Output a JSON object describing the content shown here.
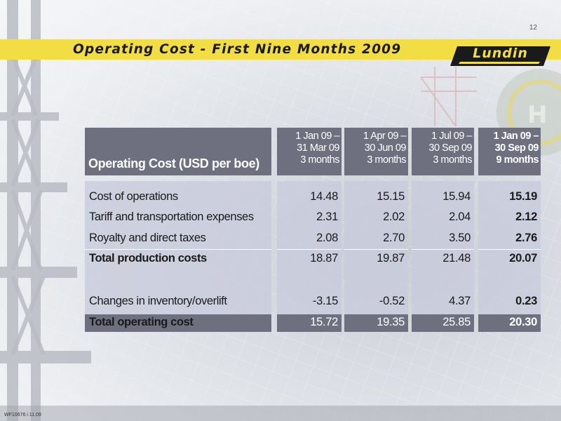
{
  "page_number": "12",
  "title": "Operating Cost - First Nine Months 2009",
  "logo": "Lundin",
  "footer_code": "WF10676 i 11.09",
  "table": {
    "header_label": "Operating Cost (USD per boe)",
    "periods": [
      {
        "line1": "1 Jan 09 –",
        "line2": "31 Mar 09",
        "line3": "3 months"
      },
      {
        "line1": "1 Apr 09 –",
        "line2": "30 Jun 09",
        "line3": "3 months"
      },
      {
        "line1": "1 Jul 09 –",
        "line2": "30 Sep 09",
        "line3": "3 months"
      },
      {
        "line1": "1 Jan 09 –",
        "line2": "30 Sep 09",
        "line3": "9 months"
      }
    ],
    "rows": [
      {
        "label": "Cost of operations",
        "values": [
          "14.48",
          "15.15",
          "15.94",
          "15.19"
        ]
      },
      {
        "label": "Tariff and transportation expenses",
        "values": [
          "2.31",
          "2.02",
          "2.04",
          "2.12"
        ]
      },
      {
        "label": "Royalty and direct taxes",
        "values": [
          "2.08",
          "2.70",
          "3.50",
          "2.76"
        ]
      },
      {
        "label": "Total production costs",
        "values": [
          "18.87",
          "19.87",
          "21.48",
          "20.07"
        ]
      },
      {
        "label": "Changes in inventory/overlift",
        "values": [
          "-3.15",
          "-0.52",
          "4.37",
          "0.23"
        ]
      },
      {
        "label": "Total operating cost",
        "values": [
          "15.72",
          "19.35",
          "25.85",
          "20.30"
        ]
      }
    ]
  },
  "colors": {
    "accent_yellow": "#f2de44",
    "header_slate": "#6e7080",
    "body_lavender": "#c8cbdb"
  }
}
